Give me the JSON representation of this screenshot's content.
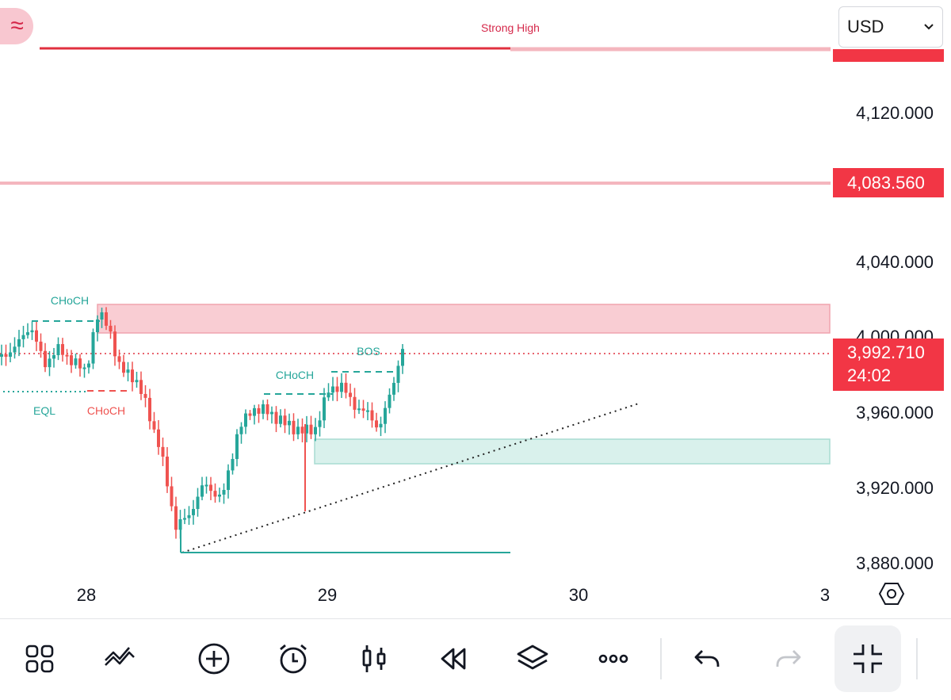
{
  "chart_data": {
    "type": "candlestick",
    "title": "",
    "y_ticks": [
      "4,120.000",
      "4,040.000",
      "4,000.000",
      "3,960.000",
      "3,920.000",
      "3,880.000"
    ],
    "x_ticks": [
      "28",
      "29",
      "30",
      "3"
    ],
    "strong_high_label": "Strong High",
    "strong_high_value": "4,083.560",
    "current_price": "3,992.710",
    "countdown": "24:02",
    "annotations": [
      "CHoCH",
      "EQL",
      "CHoCH",
      "CHoCH",
      "BOS"
    ],
    "zones": [
      {
        "type": "supply",
        "from": 3998,
        "to": 4020
      },
      {
        "type": "demand",
        "from": 3934,
        "to": 3946
      }
    ]
  },
  "header": {
    "currency": "USD"
  },
  "toolbar": {
    "buttons": [
      "grid-icon",
      "indicators-icon",
      "add-icon",
      "alert-icon",
      "candles-icon",
      "replay-icon",
      "layers-icon",
      "more-icon",
      "undo-icon",
      "redo-icon",
      "collapse-icon"
    ]
  },
  "colors": {
    "up": "#26a69a",
    "down": "#ef5350",
    "accent": "#f23645"
  }
}
